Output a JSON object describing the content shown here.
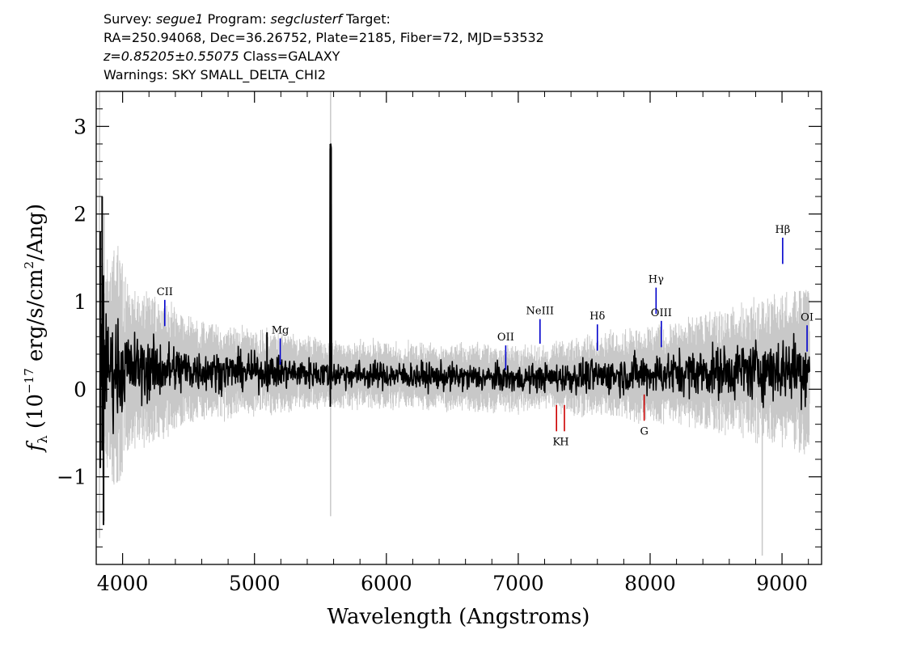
{
  "header": {
    "line1": {
      "survey_label": "Survey: ",
      "survey": "segue1",
      "program_label": " Program: ",
      "program": "segclusterf",
      "target_label": " Target:"
    },
    "line2": "RA=250.94068, Dec=36.26752, Plate=2185, Fiber=72, MJD=53532",
    "line3": {
      "z": "z=0.85205±0.55075",
      "class": " Class=GALAXY"
    },
    "line4": "Warnings: SKY SMALL_DELTA_CHI2"
  },
  "chart_data": {
    "type": "line",
    "title": "",
    "xlabel": "Wavelength (Angstroms)",
    "ylabel": {
      "symbol": "f",
      "subscript": "λ",
      "rest": " (10",
      "exp": "−17",
      "rest2": " erg/s/cm",
      "exp2": "2",
      "rest3": "/Ang)"
    },
    "xlim": [
      3800,
      9300
    ],
    "ylim": [
      -2.0,
      3.4
    ],
    "x_ticks": [
      4000,
      5000,
      6000,
      7000,
      8000,
      9000
    ],
    "x_tick_labels": [
      "4000",
      "5000",
      "6000",
      "7000",
      "8000",
      "9000"
    ],
    "y_ticks": [
      -1,
      0,
      1,
      2,
      3
    ],
    "y_tick_labels": [
      "−1",
      "0",
      "1",
      "2",
      "3"
    ],
    "grid": false,
    "series": [
      {
        "role": "error",
        "color": "#c8c8c8"
      },
      {
        "role": "flux",
        "color": "#000000"
      }
    ],
    "emission_lines": [
      {
        "label": "CII",
        "x": 4320,
        "y_bottom": 0.72,
        "y_top": 1.02,
        "color": "#0000cc"
      },
      {
        "label": "Mg",
        "x": 5195,
        "y_bottom": 0.28,
        "y_top": 0.58,
        "color": "#0000cc"
      },
      {
        "label": "OII",
        "x": 6905,
        "y_bottom": 0.22,
        "y_top": 0.5,
        "color": "#0000cc"
      },
      {
        "label": "NeIII",
        "x": 7165,
        "y_bottom": 0.52,
        "y_top": 0.8,
        "color": "#0000cc"
      },
      {
        "label": "Hδ",
        "x": 7600,
        "y_bottom": 0.44,
        "y_top": 0.74,
        "color": "#0000cc"
      },
      {
        "label": "Hγ",
        "x": 8045,
        "y_bottom": 0.86,
        "y_top": 1.16,
        "color": "#0000cc"
      },
      {
        "label": "OIII",
        "x": 8085,
        "y_bottom": 0.48,
        "y_top": 0.78,
        "color": "#0000cc"
      },
      {
        "label": "Hβ",
        "x": 9005,
        "y_bottom": 1.43,
        "y_top": 1.73,
        "color": "#0000cc"
      },
      {
        "label": "OI",
        "x": 9190,
        "y_bottom": 0.43,
        "y_top": 0.73,
        "color": "#0000cc"
      }
    ],
    "absorption_lines": [
      {
        "label": "K",
        "x": 7290,
        "y_bottom": -0.48,
        "y_top": -0.18,
        "color": "#cc0000"
      },
      {
        "label": "H",
        "x": 7350,
        "y_bottom": -0.48,
        "y_top": -0.18,
        "color": "#cc0000"
      },
      {
        "label": "G",
        "x": 7955,
        "y_bottom": -0.36,
        "y_top": -0.06,
        "color": "#cc0000"
      }
    ]
  }
}
